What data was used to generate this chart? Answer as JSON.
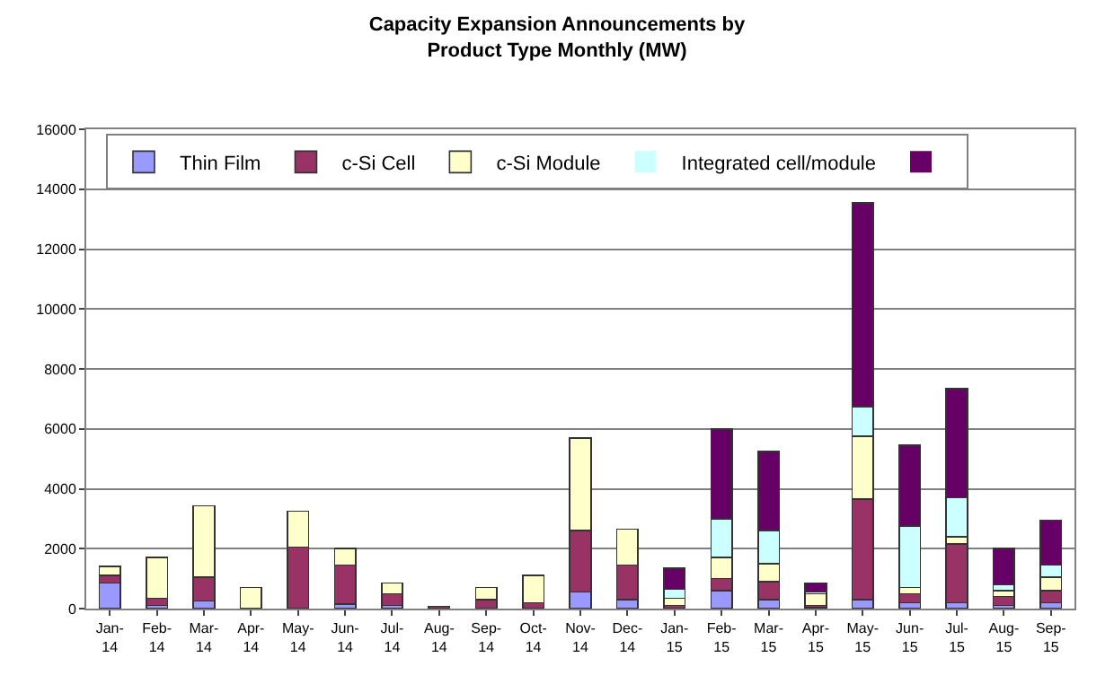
{
  "chart_data": {
    "type": "bar",
    "title": "Capacity Expansion Announcements by\nProduct Type Monthly (MW)",
    "categories": [
      "Jan-14",
      "Feb-14",
      "Mar-14",
      "Apr-14",
      "May-14",
      "Jun-14",
      "Jul-14",
      "Aug-14",
      "Sep-14",
      "Oct-14",
      "Nov-14",
      "Dec-14",
      "Jan-15",
      "Feb-15",
      "Mar-15",
      "Apr-15",
      "May-15",
      "Jun-15",
      "Jul-15",
      "Aug-15",
      "Sep-15"
    ],
    "stacked": true,
    "series": [
      {
        "name": "Thin Film",
        "color": "#9999ff",
        "values": [
          850,
          100,
          250,
          0,
          0,
          150,
          100,
          0,
          0,
          0,
          550,
          300,
          null,
          600,
          300,
          50,
          300,
          200,
          200,
          100,
          200
        ]
      },
      {
        "name": "c-Si Cell",
        "color": "#993366",
        "values": [
          250,
          250,
          800,
          null,
          2050,
          1300,
          400,
          80,
          300,
          200,
          2050,
          1150,
          100,
          400,
          600,
          50,
          3350,
          300,
          1950,
          300,
          400
        ]
      },
      {
        "name": "c-Si Module",
        "color": "#ffffcc",
        "values": [
          300,
          1350,
          2380,
          700,
          1200,
          550,
          350,
          0,
          400,
          900,
          3100,
          1200,
          250,
          700,
          600,
          400,
          2100,
          200,
          250,
          200,
          450
        ]
      },
      {
        "name": "Integrated cell/module",
        "color": "#ccffff",
        "values": [
          0,
          0,
          0,
          0,
          0,
          0,
          0,
          0,
          0,
          0,
          0,
          0,
          300,
          1300,
          1100,
          50,
          1000,
          2050,
          1300,
          200,
          400
        ]
      },
      {
        "color": "#660066",
        "values": [
          0,
          0,
          0,
          0,
          0,
          0,
          0,
          0,
          0,
          0,
          0,
          0,
          700,
          3000,
          2650,
          300,
          6800,
          2700,
          3650,
          1200,
          1500
        ]
      }
    ],
    "ylim": [
      0,
      16000
    ],
    "yticks": [
      0,
      2000,
      4000,
      6000,
      8000,
      10000,
      12000,
      14000,
      16000
    ],
    "grid": "y",
    "legend": "top"
  }
}
